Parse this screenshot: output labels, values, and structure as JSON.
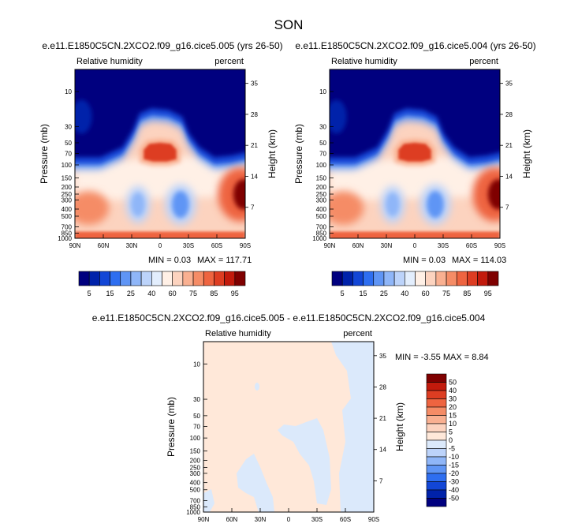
{
  "figure": {
    "title": "SON"
  },
  "colors": {
    "bg_frame": "#ffffff",
    "rh_scale": [
      "#00007f",
      "#0022aa",
      "#1246d6",
      "#2e6ef0",
      "#5f95f5",
      "#8fb6f8",
      "#bcd3fa",
      "#e3eefd",
      "#fff0e6",
      "#fcd3bf",
      "#f9b091",
      "#f58c66",
      "#ee6440",
      "#dd3d22",
      "#c21a0c",
      "#7f0000"
    ],
    "diff_scale": [
      "#00007f",
      "#0022aa",
      "#1246d6",
      "#2e6ef0",
      "#5f95f5",
      "#8fb6f8",
      "#bcd3fa",
      "#dbe9fb",
      "#ffe8d9",
      "#fcd3bf",
      "#f9b091",
      "#f58c66",
      "#ee6440",
      "#dd3d22",
      "#c21a0c",
      "#7f0000"
    ]
  },
  "chart_data": [
    {
      "type": "heatmap",
      "id": "panel-left",
      "title": "e.e11.E1850C5CN.2XCO2.f09_g16.cice5.005 (yrs 26-50)",
      "left_label": "Relative humidity",
      "right_label": "percent",
      "ylabel": "Pressure (mb)",
      "y2label": "Height (km)",
      "x_ticks": [
        "90N",
        "60N",
        "30N",
        "0",
        "30S",
        "60S",
        "90S"
      ],
      "y_ticks": [
        "10",
        "30",
        "50",
        "70",
        "100",
        "150",
        "200",
        "250",
        "300",
        "400",
        "500",
        "700",
        "850",
        "1000"
      ],
      "y2_ticks": [
        "35",
        "28",
        "21",
        "14",
        "7"
      ],
      "min_label": "MIN =  0.03",
      "max_label": "MAX = 117.71",
      "colorbar_labels": [
        "5",
        "15",
        "25",
        "40",
        "60",
        "75",
        "85",
        "95"
      ]
    },
    {
      "type": "heatmap",
      "id": "panel-right",
      "title": "e.e11.E1850C5CN.2XCO2.f09_g16.cice5.004 (yrs 26-50)",
      "left_label": "Relative humidity",
      "right_label": "percent",
      "ylabel": "Pressure (mb)",
      "y2label": "Height (km)",
      "x_ticks": [
        "90N",
        "60N",
        "30N",
        "0",
        "30S",
        "60S",
        "90S"
      ],
      "y_ticks": [
        "10",
        "30",
        "50",
        "70",
        "100",
        "150",
        "200",
        "250",
        "300",
        "400",
        "500",
        "700",
        "850",
        "1000"
      ],
      "y2_ticks": [
        "35",
        "28",
        "21",
        "14",
        "7"
      ],
      "min_label": "MIN =  0.03",
      "max_label": "MAX = 114.03",
      "colorbar_labels": [
        "5",
        "15",
        "25",
        "40",
        "60",
        "75",
        "85",
        "95"
      ]
    },
    {
      "type": "heatmap",
      "id": "panel-diff",
      "title": "e.e11.E1850C5CN.2XCO2.f09_g16.cice5.005 - e.e11.E1850C5CN.2XCO2.f09_g16.cice5.004",
      "left_label": "Relative humidity",
      "right_label": "percent",
      "ylabel": "Pressure (mb)",
      "y2label": "Height (km)",
      "x_ticks": [
        "90N",
        "60N",
        "30N",
        "0",
        "30S",
        "60S",
        "90S"
      ],
      "y_ticks": [
        "10",
        "30",
        "50",
        "70",
        "100",
        "150",
        "200",
        "250",
        "300",
        "400",
        "500",
        "700",
        "850",
        "1000"
      ],
      "y2_ticks": [
        "35",
        "28",
        "21",
        "14",
        "7"
      ],
      "minmax_label": "MIN = -3.55  MAX =  8.84",
      "colorbar_labels": [
        "50",
        "40",
        "30",
        "20",
        "15",
        "10",
        "5",
        "0",
        "-5",
        "-10",
        "-15",
        "-20",
        "-30",
        "-40",
        "-50"
      ]
    }
  ]
}
